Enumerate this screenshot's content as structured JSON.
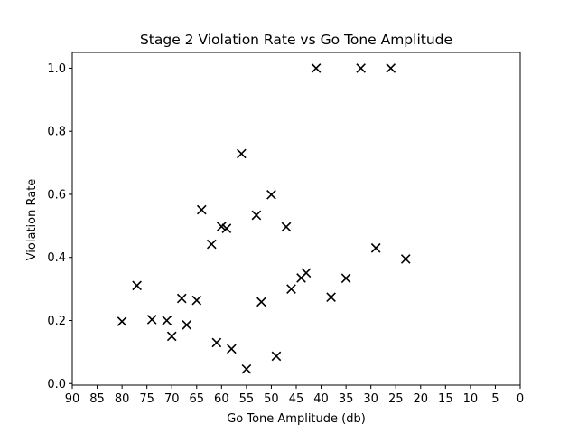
{
  "chart_data": {
    "type": "scatter",
    "title": "Stage 2 Violation Rate vs Go Tone Amplitude",
    "xlabel": "Go Tone Amplitude (db)",
    "ylabel": "Violation Rate",
    "xlim": [
      90,
      0
    ],
    "ylim": [
      -0.005,
      1.05
    ],
    "x_ticks": [
      "90",
      "85",
      "80",
      "75",
      "70",
      "65",
      "60",
      "55",
      "50",
      "45",
      "40",
      "35",
      "30",
      "25",
      "20",
      "15",
      "10",
      "5",
      "0"
    ],
    "y_ticks": [
      "0.0",
      "0.2",
      "0.4",
      "0.6",
      "0.8",
      "1.0"
    ],
    "marker": "x",
    "marker_color": "#000000",
    "grid": false,
    "points": [
      {
        "x": 80,
        "y": 0.197
      },
      {
        "x": 77,
        "y": 0.311
      },
      {
        "x": 74,
        "y": 0.203
      },
      {
        "x": 71,
        "y": 0.2
      },
      {
        "x": 70,
        "y": 0.15
      },
      {
        "x": 68,
        "y": 0.27
      },
      {
        "x": 67,
        "y": 0.186
      },
      {
        "x": 65,
        "y": 0.264
      },
      {
        "x": 64,
        "y": 0.551
      },
      {
        "x": 62,
        "y": 0.442
      },
      {
        "x": 61,
        "y": 0.13
      },
      {
        "x": 60,
        "y": 0.498
      },
      {
        "x": 59,
        "y": 0.492
      },
      {
        "x": 58,
        "y": 0.11
      },
      {
        "x": 56,
        "y": 0.729
      },
      {
        "x": 55,
        "y": 0.046
      },
      {
        "x": 53,
        "y": 0.534
      },
      {
        "x": 52,
        "y": 0.259
      },
      {
        "x": 50,
        "y": 0.599
      },
      {
        "x": 49,
        "y": 0.087
      },
      {
        "x": 47,
        "y": 0.497
      },
      {
        "x": 46,
        "y": 0.3
      },
      {
        "x": 44,
        "y": 0.335
      },
      {
        "x": 43,
        "y": 0.351
      },
      {
        "x": 41,
        "y": 1.0
      },
      {
        "x": 38,
        "y": 0.274
      },
      {
        "x": 35,
        "y": 0.334
      },
      {
        "x": 32,
        "y": 1.0
      },
      {
        "x": 29,
        "y": 0.43
      },
      {
        "x": 26,
        "y": 1.0
      },
      {
        "x": 23,
        "y": 0.395
      }
    ]
  }
}
